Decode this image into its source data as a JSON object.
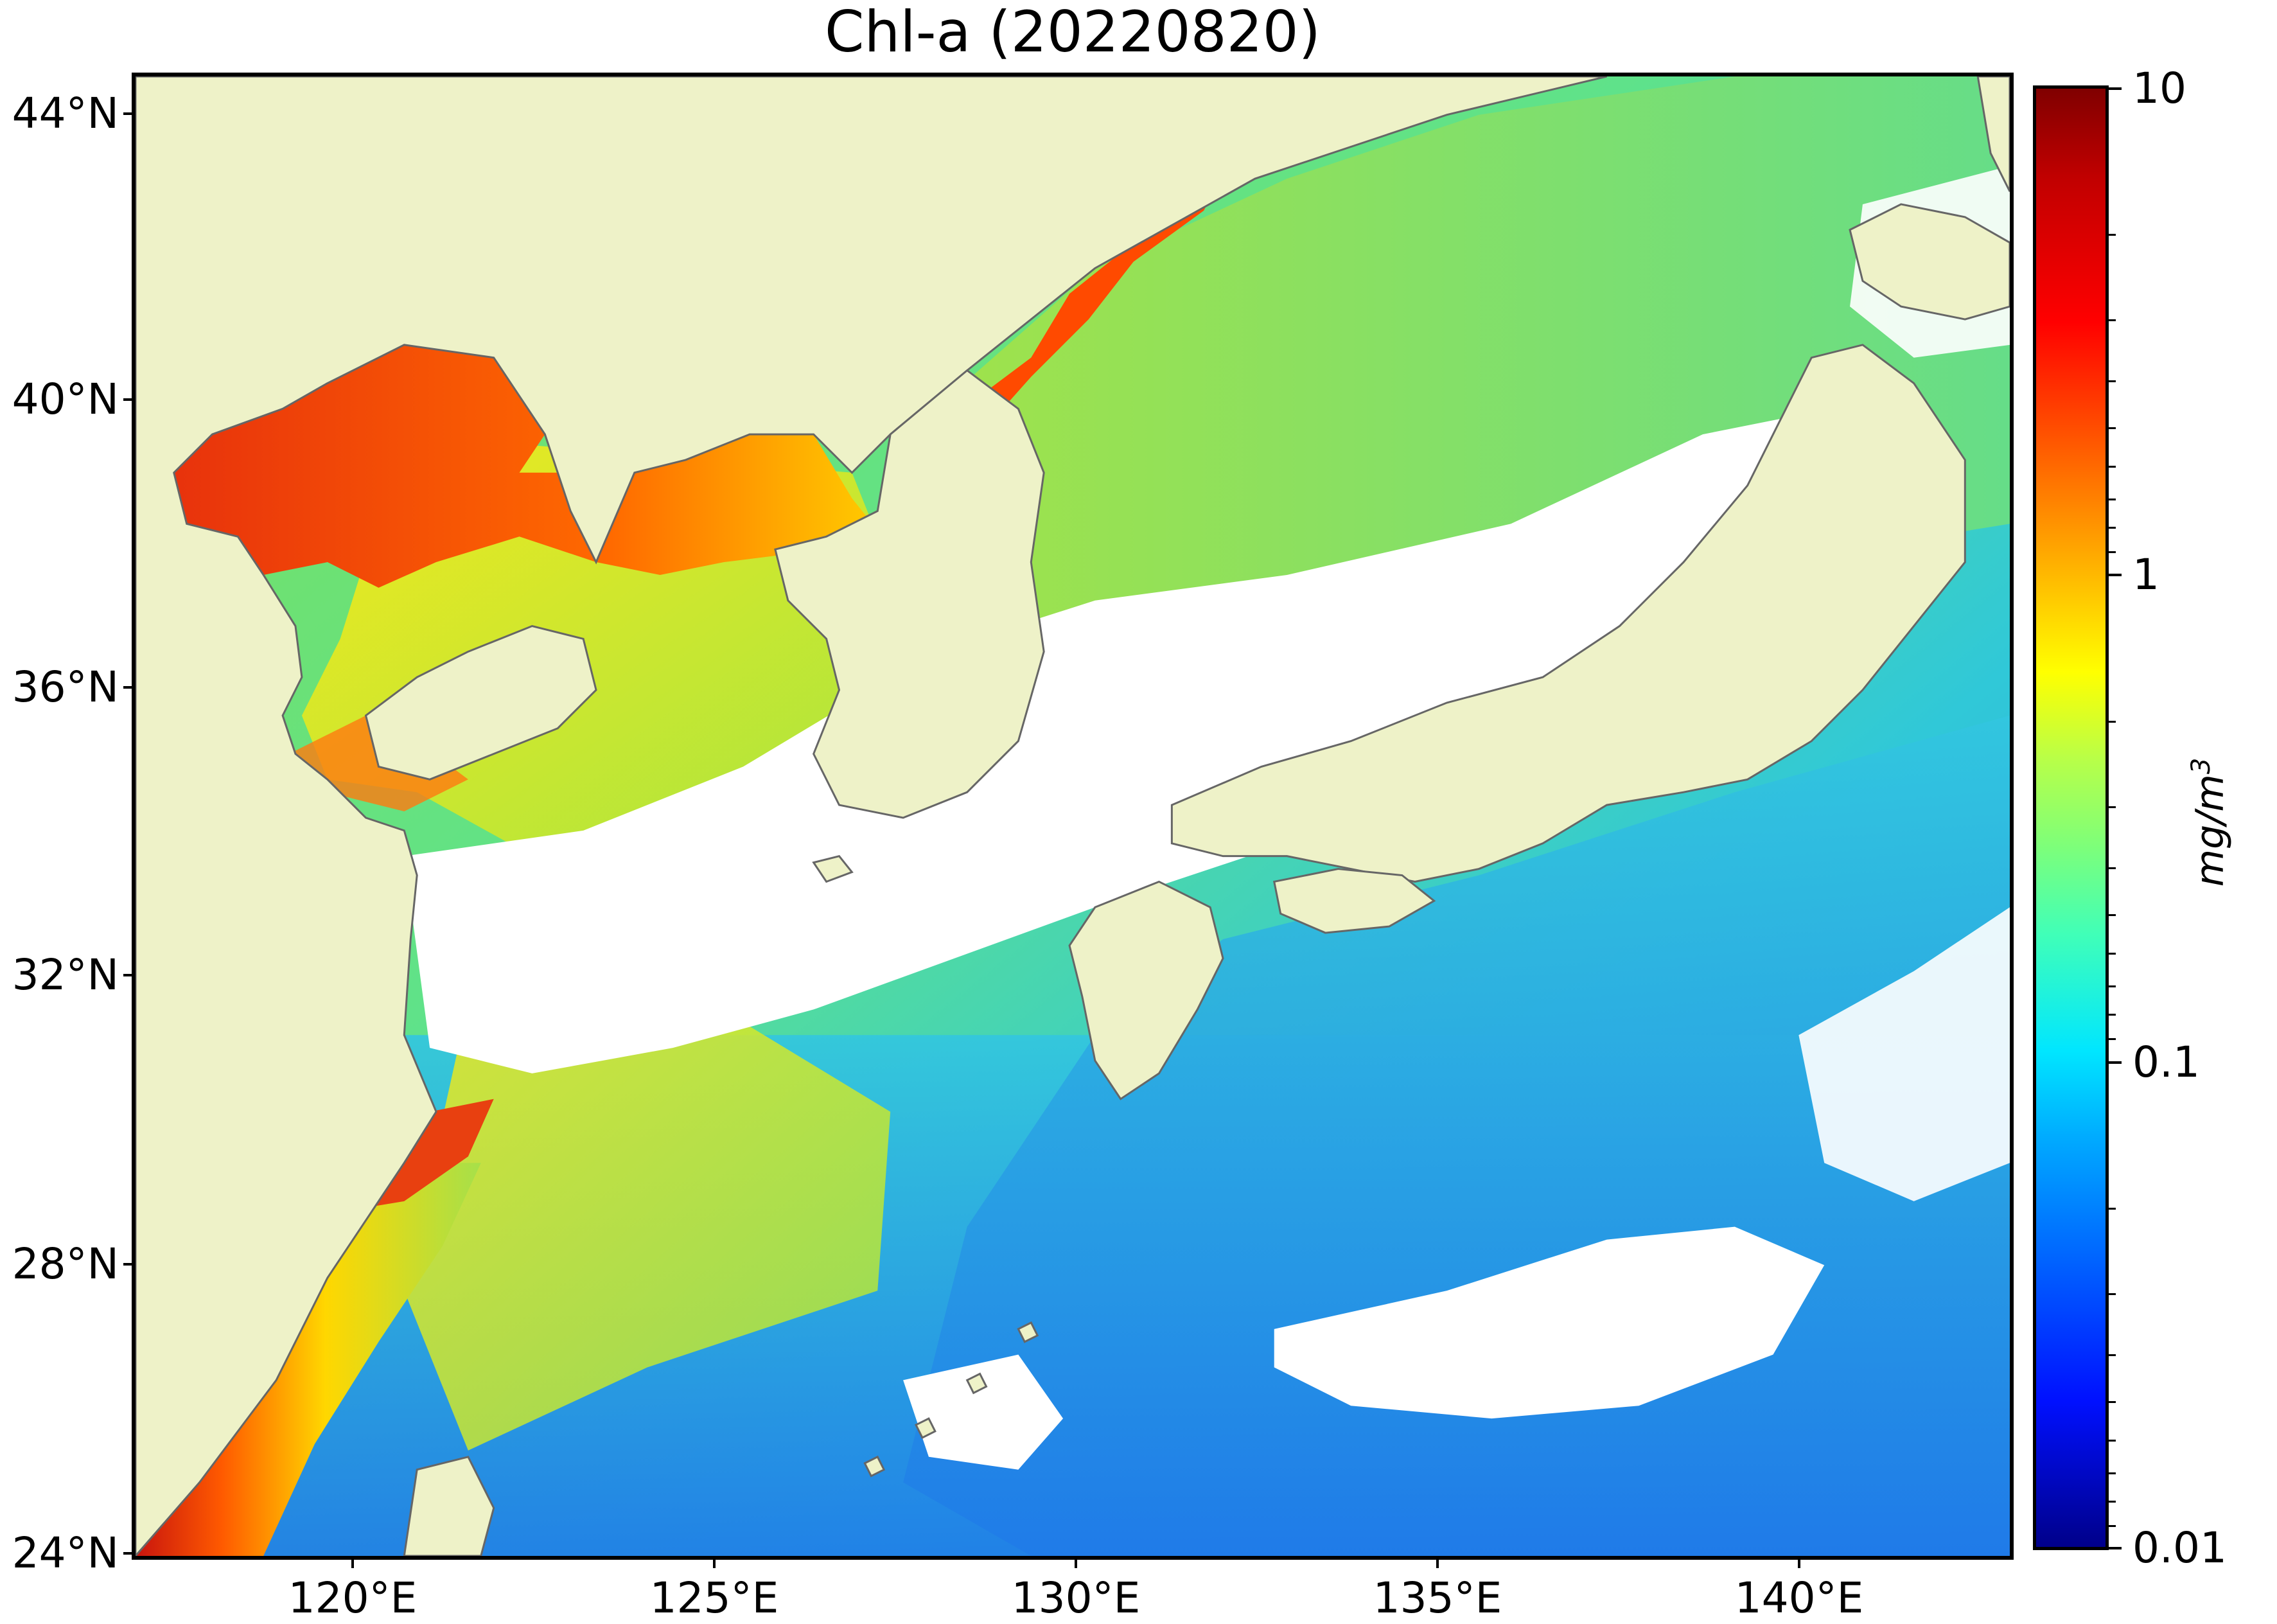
{
  "title": "Chl-a (20220820)",
  "axes": {
    "lat_labels": [
      "44°N",
      "40°N",
      "36°N",
      "32°N",
      "28°N",
      "24°N"
    ],
    "lon_labels": [
      "120°E",
      "125°E",
      "130°E",
      "135°E",
      "140°E"
    ],
    "lat_range": [
      24,
      44.5
    ],
    "lon_range": [
      117,
      143
    ]
  },
  "colorbar": {
    "labels": [
      "10",
      "1",
      "0.1",
      "0.01"
    ],
    "units_main": "mg/m",
    "units_sup": "3",
    "scale": "log",
    "range": [
      0.01,
      10
    ],
    "colormap": "jet"
  },
  "colors": {
    "land": "#eef2c8",
    "coast": "#666666",
    "no_data": "#ffffff"
  }
}
